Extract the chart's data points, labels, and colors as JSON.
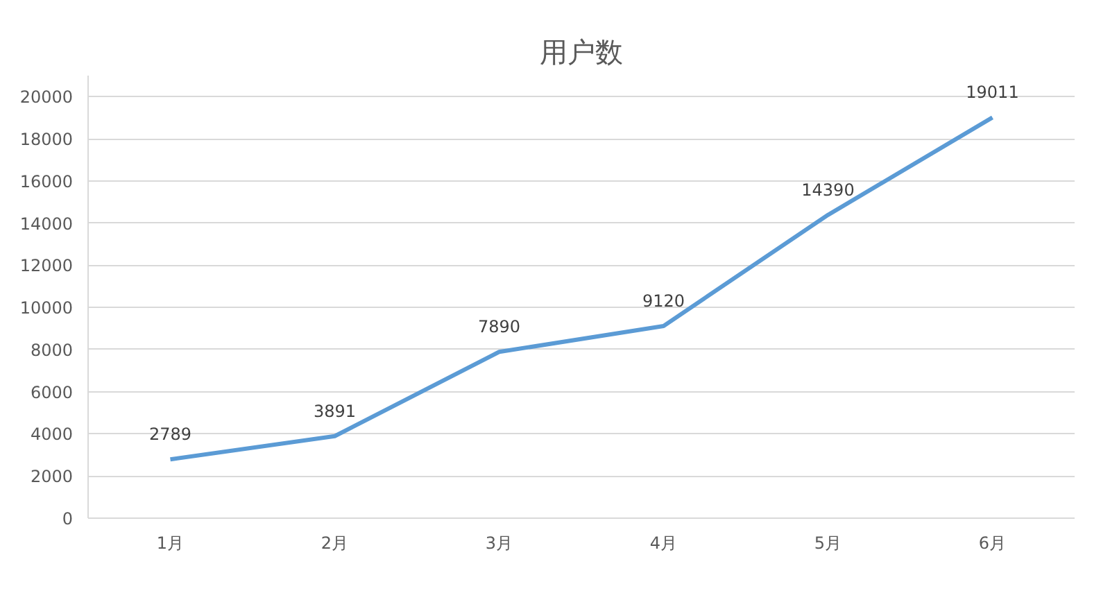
{
  "chart_data": {
    "type": "line",
    "title": "用户数",
    "categories": [
      "1月",
      "2月",
      "3月",
      "4月",
      "5月",
      "6月"
    ],
    "series": [
      {
        "color": "#5b9bd5",
        "values": [
          2789,
          3891,
          7890,
          9120,
          14390,
          19011
        ]
      }
    ],
    "ylim": [
      0,
      21000
    ],
    "yticks": [
      0,
      2000,
      4000,
      6000,
      8000,
      10000,
      12000,
      14000,
      16000,
      18000,
      20000
    ],
    "grid": "y",
    "data_labels": true,
    "marker": "none",
    "line_style": "solid"
  }
}
